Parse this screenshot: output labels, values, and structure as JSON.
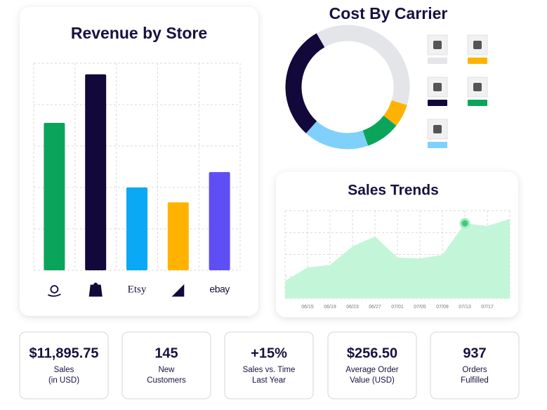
{
  "chart_data": [
    {
      "type": "bar",
      "title": "Revenue by Store",
      "categories": [
        null,
        null,
        "Etsy",
        null,
        "ebay"
      ],
      "values": [
        3.56,
        4.73,
        2.0,
        1.64,
        2.37
      ],
      "colors": [
        "#0aa55a",
        "#12093a",
        "#0aa8f5",
        "#ffb300",
        "#5e4ff5"
      ],
      "ylim": [
        0,
        5
      ],
      "yticks": [
        0,
        1,
        2,
        3,
        4,
        5
      ],
      "grid": true
    },
    {
      "type": "pie",
      "title": "Cost By Carrier",
      "donut": true,
      "values": [
        38,
        6,
        9,
        17,
        30
      ],
      "colors": [
        "#e4e5e8",
        "#ffb300",
        "#0aa55a",
        "#7fd0fb",
        "#12093a"
      ]
    },
    {
      "type": "area",
      "title": "Sales Trends",
      "categories": [
        null,
        "06/15",
        "06/19",
        "06/23",
        "06/27",
        "07/01",
        "07/05",
        "07/09",
        "07/13",
        "07/17",
        null
      ],
      "values": [
        0.8,
        1.41,
        1.52,
        2.37,
        2.82,
        1.86,
        1.82,
        1.98,
        3.42,
        3.3,
        3.62
      ],
      "color": "#c3f5d9",
      "highlight_color": "#3fca7c",
      "highlight_index": 8,
      "ylim": [
        0,
        4
      ],
      "yticks": [
        0,
        1,
        2,
        3,
        4
      ],
      "grid": true
    }
  ],
  "stats": [
    {
      "value": "$11,895.75",
      "label": [
        "Sales",
        "(in USD)"
      ]
    },
    {
      "value": "145",
      "label": [
        "New",
        "Customers"
      ]
    },
    {
      "value": "+15%",
      "label": [
        "Sales vs. Time",
        "Last Year"
      ]
    },
    {
      "value": "$256.50",
      "label": [
        "Average Order",
        "Value (USD)"
      ]
    },
    {
      "value": "937",
      "label": [
        "Orders",
        "Fulfilled"
      ]
    }
  ]
}
